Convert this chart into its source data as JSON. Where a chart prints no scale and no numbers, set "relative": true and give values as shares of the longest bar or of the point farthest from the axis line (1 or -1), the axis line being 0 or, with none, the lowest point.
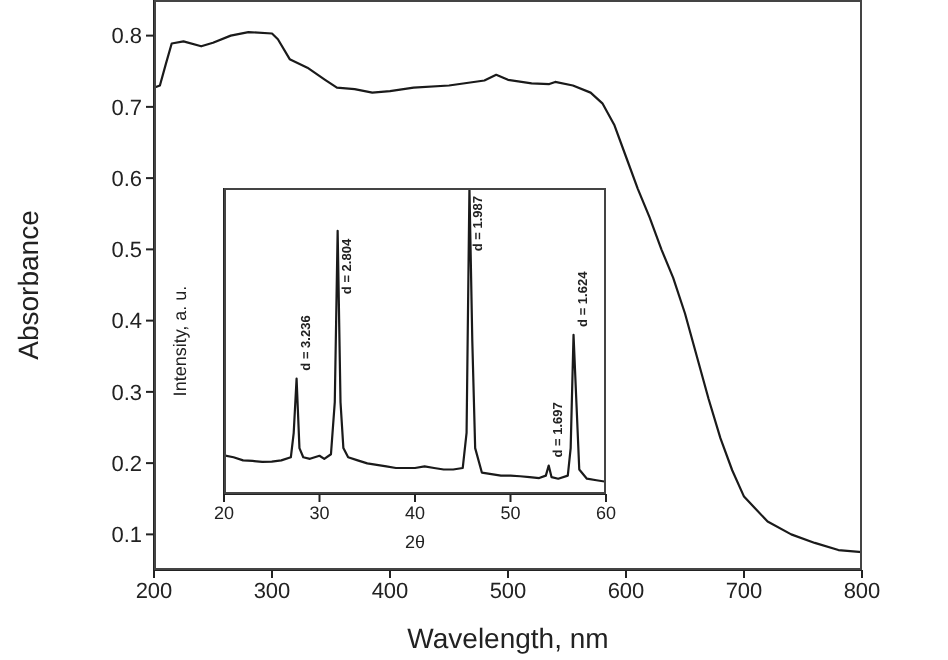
{
  "chart_data": [
    {
      "type": "line",
      "xlabel": "Wavelength, nm",
      "ylabel": "Absorbance",
      "color": "#1a1a1a",
      "xlim": [
        200,
        800
      ],
      "ylim": [
        0.05,
        0.85
      ],
      "xticks": [
        200,
        300,
        400,
        500,
        600,
        700,
        800
      ],
      "yticks": [
        0.1,
        0.2,
        0.3,
        0.4,
        0.5,
        0.6,
        0.7,
        0.8
      ],
      "x": [
        200,
        205,
        210,
        215,
        225,
        240,
        250,
        265,
        280,
        300,
        305,
        315,
        330,
        345,
        355,
        370,
        385,
        400,
        420,
        450,
        480,
        490,
        500,
        520,
        535,
        540,
        555,
        570,
        580,
        590,
        600,
        610,
        620,
        630,
        640,
        650,
        660,
        670,
        680,
        690,
        700,
        720,
        740,
        760,
        780,
        800
      ],
      "values": [
        0.727,
        0.73,
        0.76,
        0.789,
        0.792,
        0.785,
        0.79,
        0.8,
        0.805,
        0.803,
        0.795,
        0.767,
        0.755,
        0.738,
        0.727,
        0.725,
        0.72,
        0.722,
        0.727,
        0.73,
        0.737,
        0.745,
        0.738,
        0.733,
        0.732,
        0.735,
        0.73,
        0.72,
        0.705,
        0.675,
        0.63,
        0.585,
        0.545,
        0.5,
        0.46,
        0.41,
        0.35,
        0.29,
        0.235,
        0.19,
        0.153,
        0.118,
        0.1,
        0.088,
        0.078,
        0.075
      ]
    },
    {
      "type": "line",
      "xlabel": "2θ",
      "ylabel": "Intensity, a. u.",
      "color": "#1a1a1a",
      "relative": true,
      "xlim": [
        20,
        60
      ],
      "xticks": [
        20,
        30,
        40,
        50,
        60
      ],
      "x": [
        20,
        21,
        22,
        23,
        24,
        25,
        26,
        27,
        27.3,
        27.6,
        27.9,
        28.3,
        29,
        30,
        30.5,
        31.2,
        31.6,
        31.9,
        32.2,
        32.5,
        33,
        34,
        35,
        36,
        37,
        38,
        39,
        40,
        41,
        42,
        43,
        44,
        45,
        45.4,
        45.7,
        46,
        46.3,
        47,
        48,
        49,
        50,
        51,
        52,
        53,
        53.7,
        54,
        54.3,
        55,
        56,
        56.3,
        56.6,
        56.9,
        57.2,
        58,
        59,
        60
      ],
      "values": [
        0.126,
        0.12,
        0.11,
        0.108,
        0.105,
        0.106,
        0.11,
        0.12,
        0.2,
        0.377,
        0.15,
        0.12,
        0.115,
        0.125,
        0.115,
        0.13,
        0.3,
        0.86,
        0.3,
        0.15,
        0.12,
        0.11,
        0.1,
        0.095,
        0.09,
        0.085,
        0.085,
        0.085,
        0.09,
        0.085,
        0.08,
        0.08,
        0.085,
        0.2,
        1,
        0.5,
        0.15,
        0.07,
        0.065,
        0.06,
        0.06,
        0.058,
        0.055,
        0.052,
        0.06,
        0.093,
        0.055,
        0.05,
        0.06,
        0.15,
        0.52,
        0.3,
        0.08,
        0.05,
        0.045,
        0.04
      ],
      "annotations": [
        {
          "text": "d = 3.236",
          "x": 27.6,
          "y": 0.377
        },
        {
          "text": "d = 2.804",
          "x": 31.9,
          "y": 0.86
        },
        {
          "text": "d = 1.987",
          "x": 45.7,
          "y": 1
        },
        {
          "text": "d = 1.697",
          "x": 54,
          "y": 0.093
        },
        {
          "text": "d = 1.624",
          "x": 56.6,
          "y": 0.52
        }
      ]
    }
  ]
}
